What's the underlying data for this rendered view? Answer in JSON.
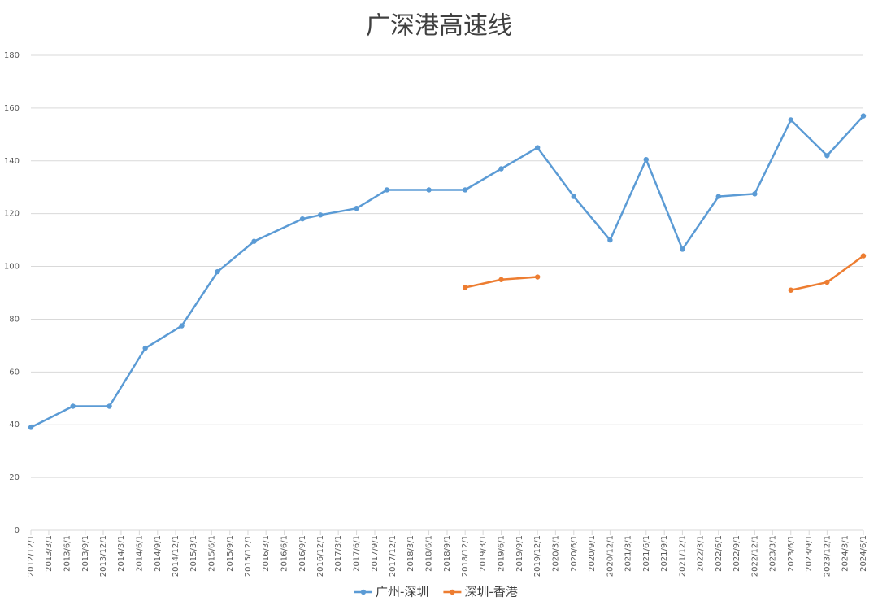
{
  "chart_data": {
    "type": "line",
    "title": "广深港高速线",
    "xlim": [
      "2012/12/1",
      "2024/6/1"
    ],
    "xticks": [
      "2012/12/1",
      "2013/3/1",
      "2013/6/1",
      "2013/9/1",
      "2013/12/1",
      "2014/3/1",
      "2014/6/1",
      "2014/9/1",
      "2014/12/1",
      "2015/3/1",
      "2015/6/1",
      "2015/9/1",
      "2015/12/1",
      "2016/3/1",
      "2016/6/1",
      "2016/9/1",
      "2016/12/1",
      "2017/3/1",
      "2017/6/1",
      "2017/9/1",
      "2017/12/1",
      "2018/3/1",
      "2018/6/1",
      "2018/9/1",
      "2018/12/1",
      "2019/3/1",
      "2019/6/1",
      "2019/9/1",
      "2019/12/1",
      "2020/3/1",
      "2020/6/1",
      "2020/9/1",
      "2020/12/1",
      "2021/3/1",
      "2021/6/1",
      "2021/9/1",
      "2021/12/1",
      "2022/3/1",
      "2022/6/1",
      "2022/9/1",
      "2022/12/1",
      "2023/3/1",
      "2023/6/1",
      "2023/9/1",
      "2023/12/1",
      "2024/3/1",
      "2024/6/1"
    ],
    "x": [
      "2012/12/1",
      "2013/7/1",
      "2014/1/1",
      "2014/7/1",
      "2015/1/1",
      "2015/7/1",
      "2016/1/1",
      "2016/9/1",
      "2016/12/1",
      "2017/6/1",
      "2017/11/1",
      "2018/6/1",
      "2018/12/1",
      "2019/6/1",
      "2019/12/1",
      "2020/6/1",
      "2020/12/1",
      "2021/6/1",
      "2021/12/1",
      "2022/6/1",
      "2022/12/1",
      "2023/6/1",
      "2023/12/1",
      "2024/6/1"
    ],
    "series": [
      {
        "name": "广州-深圳",
        "color": "#5b9bd5",
        "values": [
          39,
          47,
          47,
          69,
          77.5,
          98,
          109.5,
          118,
          119.5,
          122,
          129,
          129,
          129,
          137,
          145,
          126.5,
          110,
          140.5,
          106.5,
          126.5,
          127.5,
          155.5,
          142,
          157
        ]
      },
      {
        "name": "深圳-香港",
        "color": "#ed7d31",
        "values": [
          null,
          null,
          null,
          null,
          null,
          null,
          null,
          null,
          null,
          null,
          null,
          null,
          92,
          95,
          96,
          null,
          null,
          null,
          null,
          null,
          null,
          91,
          94,
          104
        ]
      }
    ],
    "ylim": [
      0,
      180
    ],
    "yticks": [
      0,
      20,
      40,
      60,
      80,
      100,
      120,
      140,
      160,
      180
    ],
    "grid": true,
    "legend": "bottom"
  }
}
